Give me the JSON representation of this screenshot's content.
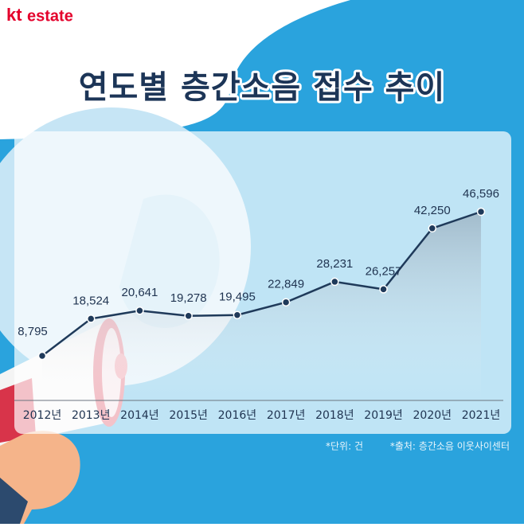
{
  "logo": {
    "brand": "kt",
    "name": "estate"
  },
  "chart_data": {
    "type": "line",
    "title": "연도별 층간소음 접수 추이",
    "categories": [
      "2012년",
      "2013년",
      "2014년",
      "2015년",
      "2016년",
      "2017년",
      "2018년",
      "2019년",
      "2020년",
      "2021년"
    ],
    "values": [
      8795,
      18524,
      20641,
      19278,
      19495,
      22849,
      28231,
      26257,
      42250,
      46596
    ],
    "value_labels": [
      "8,795",
      "18,524",
      "20,641",
      "19,278",
      "19,495",
      "22,849",
      "28,231",
      "26,257",
      "42,250",
      "46,596"
    ],
    "color": "#1f3a5a",
    "annotations": [
      "*단위: 건",
      "*출처: 층간소음 이웃사이센터"
    ]
  }
}
